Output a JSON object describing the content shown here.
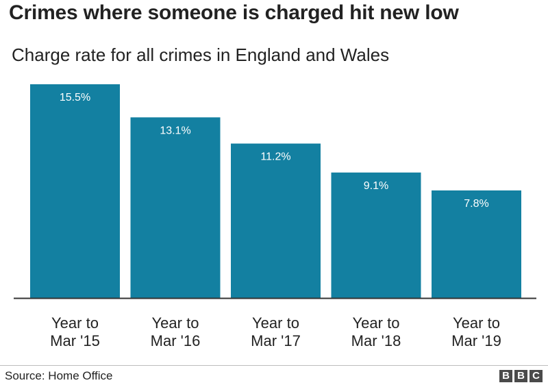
{
  "header": {
    "title": "Crimes where someone is charged hit new low",
    "subtitle": "Charge rate for all crimes in England and Wales"
  },
  "chart_data": {
    "type": "bar",
    "categories": [
      [
        "Year to",
        "Mar '15"
      ],
      [
        "Year to",
        "Mar '16"
      ],
      [
        "Year to",
        "Mar '17"
      ],
      [
        "Year to",
        "Mar '18"
      ],
      [
        "Year to",
        "Mar '19"
      ]
    ],
    "values": [
      15.5,
      13.1,
      11.2,
      9.1,
      7.8
    ],
    "data_labels": [
      "15.5%",
      "13.1%",
      "11.2%",
      "9.1%",
      "7.8%"
    ],
    "ylim": [
      0,
      15.5
    ],
    "grid": false,
    "bar_color": "#1380A1"
  },
  "footer": {
    "source": "Source: Home Office",
    "logo_letters": [
      "B",
      "B",
      "C"
    ],
    "logo_color": "#4a4a4a"
  }
}
